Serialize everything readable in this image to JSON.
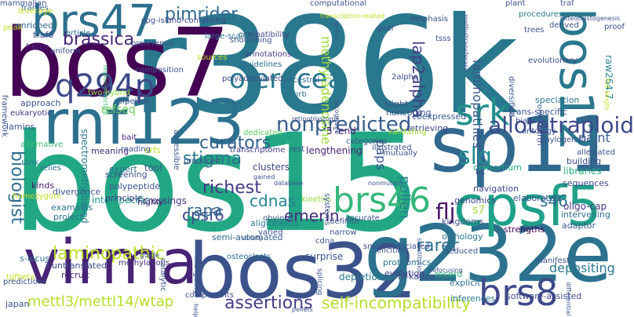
{
  "words": [
    {
      "text": "r386k",
      "color": "#2a788e",
      "rot": 0
    },
    {
      "text": "bos15",
      "color": "#22a784",
      "rot": 0
    },
    {
      "text": "bos7",
      "color": "#440154",
      "rot": 0
    },
    {
      "text": "bos32",
      "color": "#3b528b",
      "rot": 0
    },
    {
      "text": "g232e",
      "color": "#2c728e",
      "rot": 0
    },
    {
      "text": "sp11",
      "color": "#31688e",
      "rot": 0
    },
    {
      "text": "rnf123",
      "color": "#2c718e",
      "rot": 0
    },
    {
      "text": "virma",
      "color": "#482475",
      "rot": 0
    },
    {
      "text": "brs47",
      "color": "#2d708e",
      "rot": 0
    },
    {
      "text": "cpsf5",
      "color": "#1fa088",
      "rot": 0
    },
    {
      "text": "bos12",
      "color": "#2a788e",
      "rot": 270
    },
    {
      "text": "q294p",
      "color": "#3e4989",
      "rot": 0
    },
    {
      "text": "oleracea",
      "color": "#2a788e",
      "rot": 0
    },
    {
      "text": "srk",
      "color": "#21918c",
      "rot": 0
    },
    {
      "text": "nonpredicted",
      "color": "#365c8d",
      "rot": 0
    },
    {
      "text": "brs46",
      "color": "#35b779",
      "rot": 0
    },
    {
      "text": "allotetraploid",
      "color": "#3e4989",
      "rot": 0
    },
    {
      "text": "brs8",
      "color": "#3e4989",
      "rot": 0
    },
    {
      "text": "slg",
      "color": "#228d8d",
      "rot": 0
    },
    {
      "text": "pimrider",
      "color": "#31688e",
      "rot": 0
    },
    {
      "text": "brassica",
      "color": "#482878",
      "rot": 0
    },
    {
      "text": "laminopathic",
      "color": "#bddf26",
      "rot": 0
    },
    {
      "text": "richest",
      "color": "#443983",
      "rot": 0
    },
    {
      "text": "stigma",
      "color": "#2a788e",
      "rot": 0
    },
    {
      "text": "cpsf6",
      "color": "#3e4989",
      "rot": 0
    },
    {
      "text": "rapa",
      "color": "#31688e",
      "rot": 0
    },
    {
      "text": "emerin",
      "color": "#472d7b",
      "rot": 0
    },
    {
      "text": "cdnas",
      "color": "#26828e",
      "rot": 0
    },
    {
      "text": "curators",
      "color": "#34618d",
      "rot": 0
    },
    {
      "text": "assertions",
      "color": "#433e85",
      "rot": 0
    },
    {
      "text": "self-incompatibility",
      "color": "#b5de2b",
      "rot": 0
    },
    {
      "text": "mettl3/mettl14/wtap",
      "color": "#b5de2b",
      "rot": 0
    },
    {
      "text": "depositing",
      "color": "#2a788e",
      "rot": 0
    },
    {
      "text": "paint",
      "color": "#34618d",
      "rot": 0
    },
    {
      "text": "pollen",
      "color": "#26828e",
      "rot": 270
    },
    {
      "text": "lap2alpha",
      "color": "#433e85",
      "rot": 270
    },
    {
      "text": "methyladenosine",
      "color": "#a0da39",
      "rot": 270
    },
    {
      "text": "biologist",
      "color": "#2f6c8e",
      "rot": 270
    },
    {
      "text": "refseq",
      "color": "#6ece58",
      "rot": 0
    },
    {
      "text": "laminopathies",
      "color": "#39568c",
      "rot": 270
    },
    {
      "text": "paps",
      "color": "#3b528b",
      "rot": 270
    },
    {
      "text": "flj",
      "color": "#471063",
      "rot": 0
    },
    {
      "text": "s46",
      "color": "#2d708e",
      "rot": 0
    },
    {
      "text": "rarer",
      "color": "#2e6f8e",
      "rot": 0
    },
    {
      "text": "s7",
      "color": "#a0da39",
      "rot": 0
    },
    {
      "text": "raw264.7",
      "color": "#27808e",
      "rot": 270
    },
    {
      "text": "tool",
      "color": "#3b528b",
      "rot": 0
    },
    {
      "text": "interspecific",
      "color": "#1f9a8a",
      "rot": 0
    },
    {
      "text": "crossings",
      "color": "#453781",
      "rot": 0
    },
    {
      "text": "cpg-island-containing",
      "color": "#3e4989",
      "rot": 0
    },
    {
      "text": "compatibility",
      "color": "#404688",
      "rot": 0
    },
    {
      "text": "annotations",
      "color": "#433e85",
      "rot": 0
    },
    {
      "text": "guidelines",
      "color": "#2e6e8e",
      "rot": 0
    },
    {
      "text": "polyadenylated",
      "color": "#3e4a89",
      "rot": 0
    },
    {
      "text": "pipeline",
      "color": "#3b528b",
      "rot": 0
    },
    {
      "text": "two-hybrid",
      "color": "#8fd744",
      "rot": 0
    },
    {
      "text": "coexpressed",
      "color": "#38598c",
      "rot": 0
    },
    {
      "text": "retrieving",
      "color": "#3e4989",
      "rot": 0
    },
    {
      "text": "5'-end",
      "color": "#482475",
      "rot": 0
    },
    {
      "text": "dedicated",
      "color": "#5ec962",
      "rot": 0
    },
    {
      "text": "transcriptome",
      "color": "#424086",
      "rot": 0
    },
    {
      "text": "orfs",
      "color": "#c2df23",
      "rot": 0
    },
    {
      "text": "trans-specific",
      "color": "#3b528b",
      "rot": 0
    },
    {
      "text": "speciation",
      "color": "#2b748e",
      "rot": 0
    },
    {
      "text": "building",
      "color": "#3b528b",
      "rot": 0
    },
    {
      "text": "libraries",
      "color": "#29af7f",
      "rot": 0
    },
    {
      "text": "sequences",
      "color": "#3f4889",
      "rot": 0
    },
    {
      "text": "oligo-cap",
      "color": "#453581",
      "rot": 0
    },
    {
      "text": "intervening",
      "color": "#2e6e8e",
      "rot": 0
    },
    {
      "text": "adaptor",
      "color": "#38598c",
      "rot": 0
    },
    {
      "text": "strengths",
      "color": "#440154",
      "rot": 0
    },
    {
      "text": "elaborated",
      "color": "#3b528b",
      "rot": 0
    },
    {
      "text": "kingdoms",
      "color": "#3b528b",
      "rot": 0
    },
    {
      "text": "orthology",
      "color": "#2b758e",
      "rot": 0
    },
    {
      "text": "navigation",
      "color": "#404688",
      "rot": 0
    },
    {
      "text": "genomics",
      "color": "#423f85",
      "rot": 0
    },
    {
      "text": "consortium",
      "color": "#20a486",
      "rot": 0
    },
    {
      "text": "lengthening",
      "color": "#482475",
      "rot": 0
    },
    {
      "text": "clusters",
      "color": "#3e4989",
      "rot": 0
    },
    {
      "text": "alignments",
      "color": "#2a788e",
      "rot": 0
    },
    {
      "text": "semi-automated",
      "color": "#32658e",
      "rot": 0
    },
    {
      "text": "spectrometry-based",
      "color": "#2a788e",
      "rot": 270
    },
    {
      "text": "meaning",
      "color": "#472c7a",
      "rot": 0
    },
    {
      "text": "expert",
      "color": "#2e6e8e",
      "rot": 0
    },
    {
      "text": "screening",
      "color": "#3d4e8a",
      "rot": 0
    },
    {
      "text": "polypeptide",
      "color": "#39558c",
      "rot": 0
    },
    {
      "text": "principle",
      "color": "#443a83",
      "rot": 0
    },
    {
      "text": "highly",
      "color": "#46337f",
      "rot": 0
    },
    {
      "text": "examples",
      "color": "#2a768e",
      "rot": 0
    },
    {
      "text": "project",
      "color": "#2d708e",
      "rot": 0
    },
    {
      "text": "kinds",
      "color": "#481b6d",
      "rot": 0
    },
    {
      "text": "divergence",
      "color": "#3b528b",
      "rot": 0
    },
    {
      "text": "s-locus",
      "color": "#2c718e",
      "rot": 0
    },
    {
      "text": "3'untranslated",
      "color": "#3c4f8a",
      "rot": 0
    },
    {
      "text": "recruit",
      "color": "#482071",
      "rot": 0
    },
    {
      "text": "japan",
      "color": "#3b528b",
      "rot": 0
    },
    {
      "text": "osteoclasts",
      "color": "#2c728e",
      "rot": 0
    },
    {
      "text": "methylations",
      "color": "#472d7b",
      "rot": 0
    },
    {
      "text": "proteomics",
      "color": "#2a778e",
      "rot": 0
    },
    {
      "text": "evolution",
      "color": "#453882",
      "rot": 0
    },
    {
      "text": "nf-kappa",
      "color": "#3e4989",
      "rot": 0
    },
    {
      "text": "record",
      "color": "#35b779",
      "rot": 0
    },
    {
      "text": "explicit",
      "color": "#2e6f8e",
      "rot": 0
    },
    {
      "text": "inferences",
      "color": "#2b758e",
      "rot": 0
    },
    {
      "text": "software-assisted",
      "color": "#3e4a89",
      "rot": 0
    },
    {
      "text": "depletions",
      "color": "#2a778e",
      "rot": 0
    },
    {
      "text": "components",
      "color": "#3b528b",
      "rot": 0
    },
    {
      "text": "smad-associated",
      "color": "#3e4989",
      "rot": 0
    },
    {
      "text": "frames",
      "color": "#32648e",
      "rot": 0
    },
    {
      "text": "enriched",
      "color": "#32658e",
      "rot": 0
    },
    {
      "text": "traf6",
      "color": "#3b528b",
      "rot": 0
    },
    {
      "text": "helps",
      "color": "#472f7d",
      "rot": 0
    },
    {
      "text": "approach",
      "color": "#3b528b",
      "rot": 0
    },
    {
      "text": "eukaryotic",
      "color": "#46337f",
      "rot": 0
    },
    {
      "text": "lamins",
      "color": "#3b528b",
      "rot": 0
    },
    {
      "text": "alternative",
      "color": "#3fbc73",
      "rot": 0
    },
    {
      "text": "bait",
      "color": "#482173",
      "rot": 0
    },
    {
      "text": "reading",
      "color": "#3b528b",
      "rot": 0
    },
    {
      "text": "rank",
      "color": "#2a788e",
      "rot": 0
    },
    {
      "text": "relies",
      "color": "#2d708e",
      "rot": 0
    },
    {
      "text": "uniform",
      "color": "#3e4989",
      "rot": 0
    },
    {
      "text": "article",
      "color": "#2c718e",
      "rot": 0
    },
    {
      "text": "preference",
      "color": "#3b528b",
      "rot": 0
    },
    {
      "text": "large-scale",
      "color": "#2a788e",
      "rot": 0
    },
    {
      "text": "shortening",
      "color": "#3b528b",
      "rot": 0
    },
    {
      "text": "sources",
      "color": "#c2df23",
      "rot": 0
    },
    {
      "text": "ancestral",
      "color": "#32648e",
      "rot": 0
    },
    {
      "text": "prb",
      "color": "#2a788e",
      "rot": 0
    },
    {
      "text": "2alpha",
      "color": "#3e4989",
      "rot": 0
    },
    {
      "text": "slight",
      "color": "#3b528b",
      "rot": 0
    },
    {
      "text": "noncoding",
      "color": "#3b528b",
      "rot": 0
    },
    {
      "text": "tsss",
      "color": "#3b528b",
      "rot": 0
    },
    {
      "text": "computational",
      "color": "#3b528b",
      "rot": 0
    },
    {
      "text": "emphasis",
      "color": "#3b528b",
      "rot": 0
    },
    {
      "text": "goal",
      "color": "#3b528b",
      "rot": 0
    },
    {
      "text": "plant",
      "color": "#3b528b",
      "rot": 0
    },
    {
      "text": "procedures",
      "color": "#2a788e",
      "rot": 0
    },
    {
      "text": "trees",
      "color": "#3b528b",
      "rot": 0
    },
    {
      "text": "derived",
      "color": "#3b528b",
      "rot": 0
    },
    {
      "text": "proof",
      "color": "#3b528b",
      "rot": 0
    },
    {
      "text": "traf",
      "color": "#3b528b",
      "rot": 0
    },
    {
      "text": "osteoclastogenesis",
      "color": "#3b528b",
      "rot": 0
    },
    {
      "text": "evolutionary",
      "color": "#3b528b",
      "rot": 0
    },
    {
      "text": "diversified",
      "color": "#3b528b",
      "rot": 270
    },
    {
      "text": "one-fourth",
      "color": "#3b528b",
      "rot": 270
    },
    {
      "text": "bias",
      "color": "#3b528b",
      "rot": 0
    },
    {
      "text": "ontology",
      "color": "#3b528b",
      "rot": 0
    },
    {
      "text": "phylogenetic",
      "color": "#3b528b",
      "rot": 0
    },
    {
      "text": "alleviated",
      "color": "#3b528b",
      "rot": 0
    },
    {
      "text": "validating",
      "color": "#a0da39",
      "rot": 0
    },
    {
      "text": "categories",
      "color": "#3b528b",
      "rot": 0
    },
    {
      "text": "illustrated",
      "color": "#3b528b",
      "rot": 0
    },
    {
      "text": "mutually",
      "color": "#3b528b",
      "rot": 0
    },
    {
      "text": "rest",
      "color": "#3b528b",
      "rot": 0
    },
    {
      "text": "produced",
      "color": "#3b528b",
      "rot": 0
    },
    {
      "text": "kinetics",
      "color": "#8fd744",
      "rot": 0
    },
    {
      "text": "systems",
      "color": "#3b528b",
      "rot": 270
    },
    {
      "text": "accurate",
      "color": "#3b528b",
      "rot": 0
    },
    {
      "text": "definite",
      "color": "#3b528b",
      "rot": 0
    },
    {
      "text": "obvious",
      "color": "#3b528b",
      "rot": 0
    },
    {
      "text": "variety",
      "color": "#3b528b",
      "rot": 0
    },
    {
      "text": "varied",
      "color": "#3b528b",
      "rot": 0
    },
    {
      "text": "cdna",
      "color": "#3b528b",
      "rot": 0
    },
    {
      "text": "narrow",
      "color": "#3b528b",
      "rot": 0
    },
    {
      "text": "eliciting",
      "color": "#3b528b",
      "rot": 0
    },
    {
      "text": "deduced",
      "color": "#3b528b",
      "rot": 0
    },
    {
      "text": "manifest",
      "color": "#3b528b",
      "rot": 0
    },
    {
      "text": "surprise",
      "color": "#3b528b",
      "rot": 0
    },
    {
      "text": "splicing",
      "color": "#3b528b",
      "rot": 270
    },
    {
      "text": "guide",
      "color": "#3b528b",
      "rot": 0
    },
    {
      "text": "catalytic",
      "color": "#3b528b",
      "rot": 270
    },
    {
      "text": "intriguing",
      "color": "#3b528b",
      "rot": 270
    },
    {
      "text": "tgfbeta",
      "color": "#c2df23",
      "rot": 0
    },
    {
      "text": "predictions",
      "color": "#3b528b",
      "rot": 0
    },
    {
      "text": "homozygote",
      "color": "#c2df23",
      "rot": 0
    },
    {
      "text": "leverage",
      "color": "#c2df23",
      "rot": 0
    },
    {
      "text": "peak",
      "color": "#c2df23",
      "rot": 0
    },
    {
      "text": "framework",
      "color": "#3b528b",
      "rot": 270
    },
    {
      "text": "region-selective",
      "color": "#3fbc73",
      "rot": 270
    },
    {
      "text": "composition",
      "color": "#3b528b",
      "rot": 0
    },
    {
      "text": "accessible",
      "color": "#3b528b",
      "rot": 270
    },
    {
      "text": "retinoblastoma",
      "color": "#3b528b",
      "rot": 0
    },
    {
      "text": "gained",
      "color": "#3b528b",
      "rot": 0
    },
    {
      "text": "database",
      "color": "#3b528b",
      "rot": 0
    },
    {
      "text": "transcription-related",
      "color": "#c2df23",
      "rot": 0
    },
    {
      "text": "g-rich",
      "color": "#3b528b",
      "rot": 270
    },
    {
      "text": "methyltransferase",
      "color": "#3b528b",
      "rot": 270
    },
    {
      "text": "recognized",
      "color": "#3b528b",
      "rot": 270
    },
    {
      "text": "refocusing",
      "color": "#3b528b",
      "rot": 0
    },
    {
      "text": "substitutions",
      "color": "#3b528b",
      "rot": 270
    },
    {
      "text": "b1",
      "color": "#3b528b",
      "rot": 0
    },
    {
      "text": "full-length",
      "color": "#c2df23",
      "rot": 270
    },
    {
      "text": "help",
      "color": "#3b528b",
      "rot": 270
    },
    {
      "text": "nonmutant",
      "color": "#3b528b",
      "rot": 0
    },
    {
      "text": "differential",
      "color": "#3b528b",
      "rot": 270
    },
    {
      "text": "pellets",
      "color": "#3b528b",
      "rot": 0
    },
    {
      "text": "mammalian",
      "color": "#3b528b",
      "rot": 0
    }
  ]
}
